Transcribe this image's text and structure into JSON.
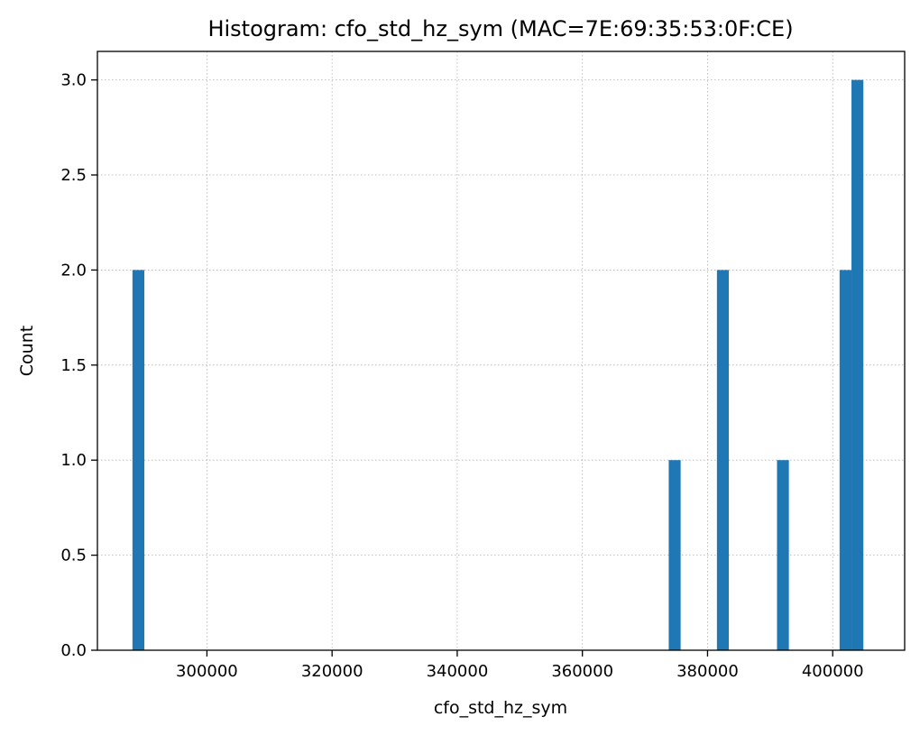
{
  "chart_data": {
    "type": "bar",
    "title": "Histogram: cfo_std_hz_sym (MAC=7E:69:35:53:0F:CE)",
    "xlabel": "cfo_std_hz_sym",
    "ylabel": "Count",
    "xlim": [
      282500,
      411500
    ],
    "ylim": [
      0,
      3.15
    ],
    "xticks": [
      300000,
      320000,
      340000,
      360000,
      380000,
      400000
    ],
    "xtick_labels": [
      "300000",
      "320000",
      "340000",
      "360000",
      "380000",
      "400000"
    ],
    "yticks": [
      0,
      0.5,
      1,
      1.5,
      2,
      2.5,
      3
    ],
    "ytick_labels": [
      "0.0",
      "0.5",
      "1.0",
      "1.5",
      "2.0",
      "2.5",
      "3.0"
    ],
    "grid": true,
    "bar_color": "#1f77b4",
    "bins": [
      {
        "x0": 288100,
        "x1": 290000,
        "count": 2
      },
      {
        "x0": 373800,
        "x1": 375700,
        "count": 1
      },
      {
        "x0": 381500,
        "x1": 383400,
        "count": 2
      },
      {
        "x0": 391100,
        "x1": 393000,
        "count": 1
      },
      {
        "x0": 401100,
        "x1": 403000,
        "count": 2
      },
      {
        "x0": 403000,
        "x1": 404900,
        "count": 3
      }
    ]
  }
}
